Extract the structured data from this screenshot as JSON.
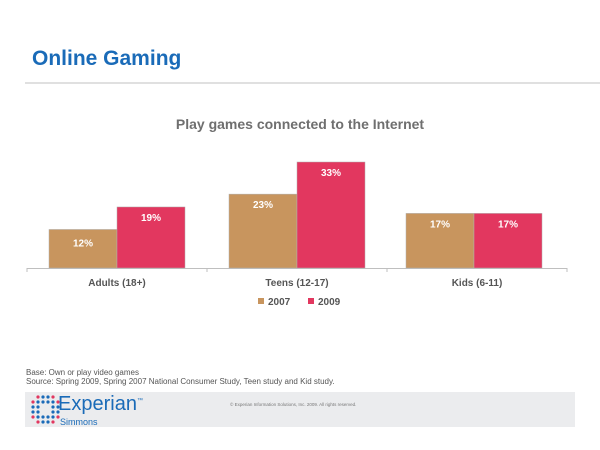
{
  "page": {
    "title": "Online Gaming",
    "footnote_base": "Base: Own or play video games",
    "footnote_source": "Source: Spring 2009, Spring 2007 National Consumer Study, Teen study and Kid study.",
    "brand": "Experian",
    "brand_tm": "™",
    "brand_sub": "Simmons",
    "copyright": "© Experian Information Solutions, Inc. 2009.  All rights reserved."
  },
  "chart_data": {
    "type": "bar",
    "title": "Play games connected to the Internet",
    "categories": [
      "Adults (18+)",
      "Teens (12-17)",
      "Kids (6-11)"
    ],
    "series": [
      {
        "name": "2007",
        "color": "#c8955e",
        "values": [
          12,
          23,
          17
        ],
        "labels": [
          "12%",
          "23%",
          "17%"
        ]
      },
      {
        "name": "2009",
        "color": "#e2375f",
        "values": [
          19,
          33,
          17
        ],
        "labels": [
          "19%",
          "33%",
          "17%"
        ]
      }
    ],
    "xlabel": "",
    "ylabel": "",
    "ylim": [
      0,
      35
    ],
    "grid": false,
    "legend": "bottom-center",
    "data_labels": "inside-top"
  }
}
